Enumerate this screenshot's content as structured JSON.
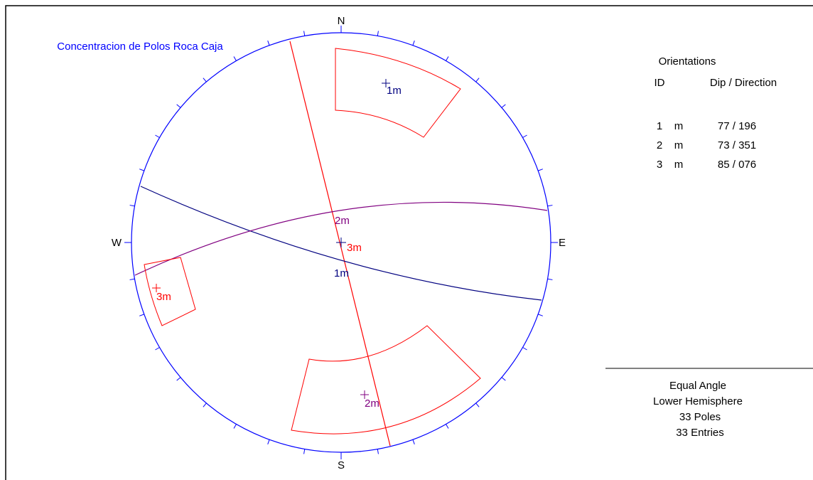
{
  "title": "Concentracion de Polos Roca Caja",
  "compass": {
    "n": "N",
    "s": "S",
    "w": "W",
    "e": "E"
  },
  "pole_labels": [
    "1m",
    "3m",
    "3m",
    "2m"
  ],
  "plane_labels": [
    "2m",
    "1m"
  ],
  "orientations": {
    "title": "Orientations",
    "headers": [
      "ID",
      "Dip / Direction"
    ],
    "rows": [
      [
        "1",
        "m",
        "77 / 196"
      ],
      [
        "2",
        "m",
        "73 / 351"
      ],
      [
        "3",
        "m",
        "85 / 076"
      ]
    ]
  },
  "footer": [
    "Equal Angle",
    "Lower Hemisphere",
    "33 Poles",
    "33 Entries"
  ]
}
